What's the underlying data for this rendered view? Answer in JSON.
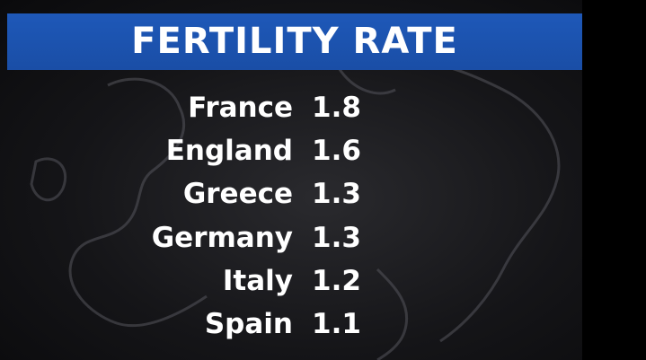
{
  "header": {
    "title": "FERTILITY RATE"
  },
  "table": {
    "rows": [
      [
        "France",
        1.8
      ],
      [
        "England",
        1.6
      ],
      [
        "Greece",
        1.3
      ],
      [
        "Germany",
        1.3
      ],
      [
        "Italy",
        1.2
      ],
      [
        "Spain",
        1.1
      ]
    ]
  }
}
